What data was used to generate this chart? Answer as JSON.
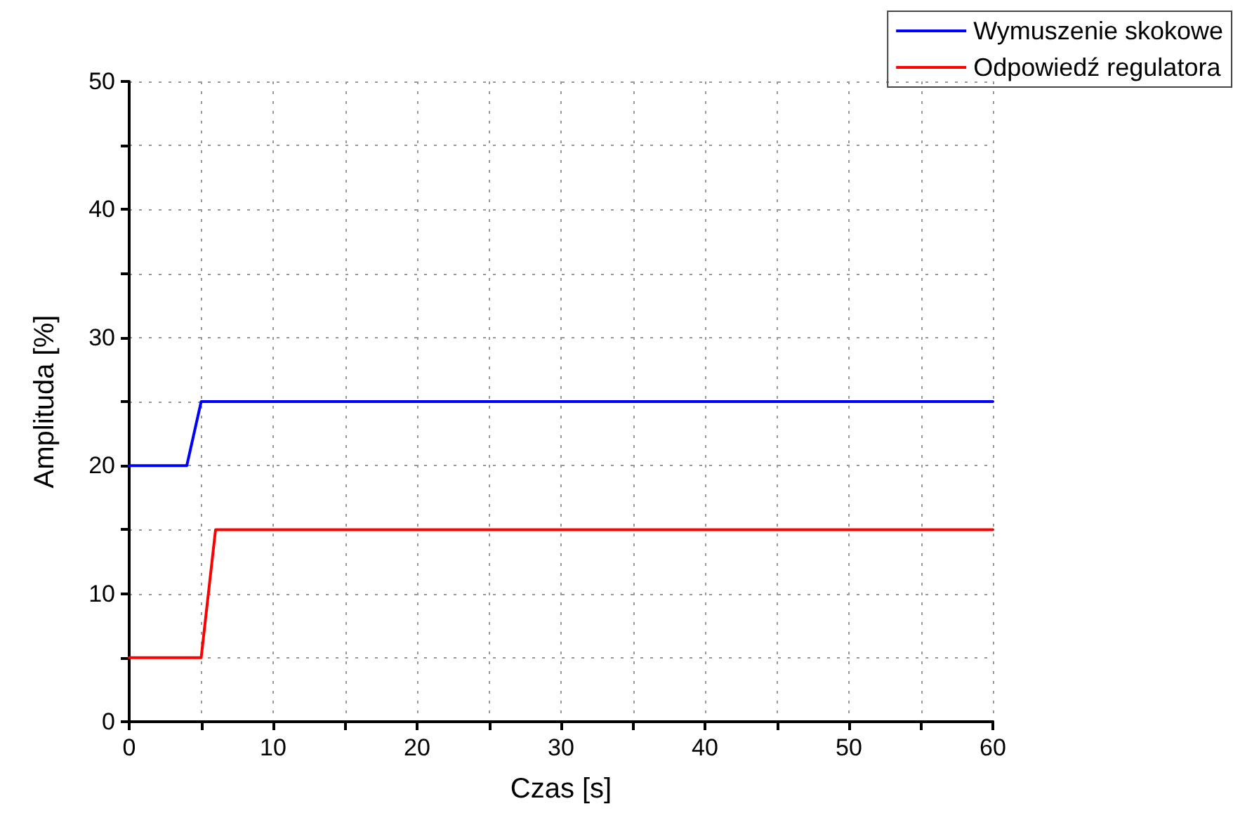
{
  "chart_data": {
    "type": "line",
    "xlabel": "Czas [s]",
    "ylabel": "Amplituda [%]",
    "series": [
      {
        "name": "Wymuszenie skokowe",
        "color": "#0000ff",
        "x": [
          0,
          4,
          5,
          60
        ],
        "values": [
          20,
          20,
          25,
          25
        ]
      },
      {
        "name": "Odpowiedź regulatora",
        "color": "#ff0000",
        "x": [
          0,
          5,
          6,
          60
        ],
        "values": [
          5,
          5,
          15,
          15
        ]
      }
    ],
    "xlim": [
      0,
      60
    ],
    "xticks": [
      0,
      {
        "value": 5,
        "label": null
      },
      10,
      {
        "value": 15,
        "label": null
      },
      20,
      {
        "value": 25,
        "label": null
      },
      30,
      {
        "value": 35,
        "label": null
      },
      40,
      {
        "value": 45,
        "label": null
      },
      50,
      {
        "value": 55,
        "label": null
      },
      60
    ],
    "ylim": [
      0,
      50
    ],
    "yticks": [
      0,
      {
        "value": 5,
        "label": null
      },
      10,
      {
        "value": 15,
        "label": null
      },
      20,
      {
        "value": 25,
        "label": null
      },
      30,
      {
        "value": 35,
        "label": null
      },
      40,
      {
        "value": 45,
        "label": null
      },
      50
    ],
    "grid": true,
    "legend": "top right",
    "marker": "none",
    "line_style": "solid"
  }
}
